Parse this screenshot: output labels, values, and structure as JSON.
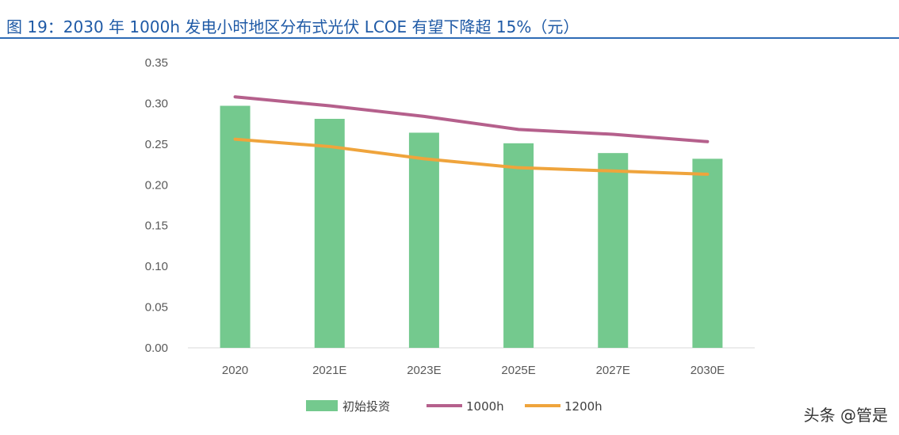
{
  "title": "图 19：2030 年 1000h 发电小时地区分布式光伏 LCOE 有望下降超 15%（元）",
  "watermark": "头条 @管是",
  "chart_data": {
    "type": "bar",
    "categories": [
      "2020",
      "2021E",
      "2023E",
      "2025E",
      "2027E",
      "2030E"
    ],
    "series": [
      {
        "name": "初始投资",
        "kind": "bar",
        "color": "#74c98e",
        "values": [
          0.297,
          0.281,
          0.264,
          0.251,
          0.239,
          0.232
        ]
      },
      {
        "name": "1000h",
        "kind": "line",
        "color": "#b5608c",
        "values": [
          0.308,
          0.297,
          0.284,
          0.268,
          0.262,
          0.253
        ]
      },
      {
        "name": "1200h",
        "kind": "line",
        "color": "#efa43c",
        "values": [
          0.256,
          0.247,
          0.232,
          0.221,
          0.217,
          0.213
        ]
      }
    ],
    "yticks": [
      "0.00",
      "0.05",
      "0.10",
      "0.15",
      "0.20",
      "0.25",
      "0.30",
      "0.35"
    ],
    "ylim": [
      0,
      0.35
    ],
    "grid": false,
    "legend": "bottom"
  }
}
